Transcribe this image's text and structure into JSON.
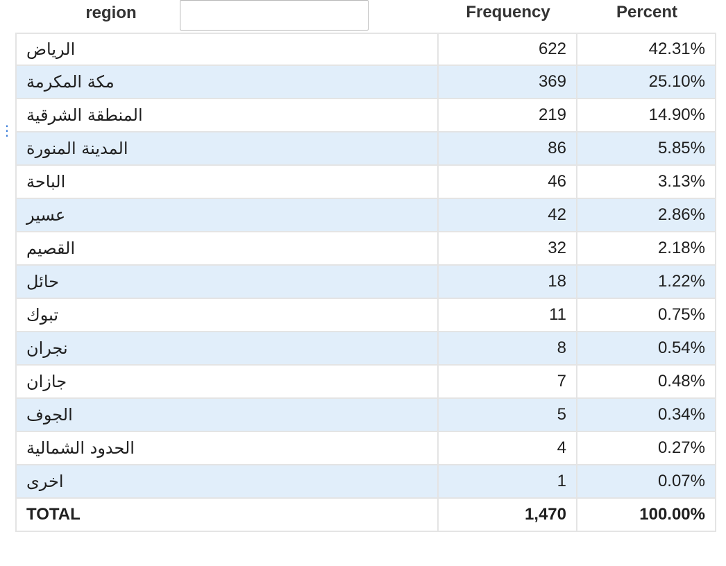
{
  "header": {
    "region_label": "region",
    "filter_placeholder": "",
    "filter_value": "",
    "frequency_label": "Frequency",
    "percent_label": "Percent",
    "drag_handle_glyph": "⋮"
  },
  "rows": [
    {
      "region": "الرياض",
      "frequency": "622",
      "percent": "42.31%"
    },
    {
      "region": "مكة المكرمة",
      "frequency": "369",
      "percent": "25.10%"
    },
    {
      "region": "المنطقة الشرقية",
      "frequency": "219",
      "percent": "14.90%"
    },
    {
      "region": "المدينة المنورة",
      "frequency": "86",
      "percent": "5.85%"
    },
    {
      "region": "الباحة",
      "frequency": "46",
      "percent": "3.13%"
    },
    {
      "region": "عسير",
      "frequency": "42",
      "percent": "2.86%"
    },
    {
      "region": "القصيم",
      "frequency": "32",
      "percent": "2.18%"
    },
    {
      "region": "حائل",
      "frequency": "18",
      "percent": "1.22%"
    },
    {
      "region": "تبوك",
      "frequency": "11",
      "percent": "0.75%"
    },
    {
      "region": "نجران",
      "frequency": "8",
      "percent": "0.54%"
    },
    {
      "region": "جازان",
      "frequency": "7",
      "percent": "0.48%"
    },
    {
      "region": "الجوف",
      "frequency": "5",
      "percent": "0.34%"
    },
    {
      "region": "الحدود الشمالية",
      "frequency": "4",
      "percent": "0.27%"
    },
    {
      "region": "اخرى",
      "frequency": "1",
      "percent": "0.07%"
    }
  ],
  "total": {
    "label": "TOTAL",
    "frequency": "1,470",
    "percent": "100.00%"
  },
  "colors": {
    "alt_row": "#e1eefa",
    "border": "#e4e4e4",
    "handle": "#3b7dd8"
  }
}
